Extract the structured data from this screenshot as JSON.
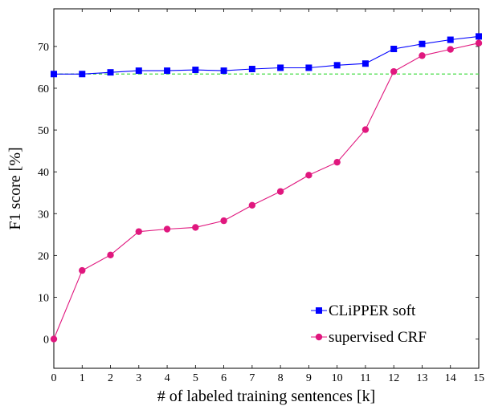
{
  "chart_data": {
    "type": "line",
    "title": "",
    "xlabel": "# of labeled training sentences [k]",
    "ylabel": "F1 score [%]",
    "xlim": [
      0,
      15
    ],
    "ylim": [
      -7,
      79
    ],
    "xticks": [
      0,
      1,
      2,
      3,
      4,
      5,
      6,
      7,
      8,
      9,
      10,
      11,
      12,
      13,
      14,
      15
    ],
    "yticks": [
      0,
      10,
      20,
      30,
      40,
      50,
      60,
      70
    ],
    "x": [
      0,
      1,
      2,
      3,
      4,
      5,
      6,
      7,
      8,
      9,
      10,
      11,
      12,
      13,
      14,
      15
    ],
    "series": [
      {
        "name": "CLiPPER soft",
        "color": "#0000ff",
        "marker": "square",
        "values": [
          63.4,
          63.4,
          63.8,
          64.2,
          64.2,
          64.4,
          64.2,
          64.6,
          64.9,
          64.9,
          65.5,
          65.9,
          69.4,
          70.6,
          71.6,
          72.4
        ]
      },
      {
        "name": "supervised CRF",
        "color": "#e0177e",
        "marker": "circle",
        "values": [
          0.0,
          16.4,
          20.1,
          25.7,
          26.3,
          26.7,
          28.3,
          32.0,
          35.3,
          39.2,
          42.3,
          50.1,
          64.0,
          67.8,
          69.3,
          70.8
        ]
      }
    ],
    "reference_line": {
      "y": 63.4,
      "color": "#44dd44",
      "style": "dashed"
    },
    "legend": {
      "position": "bottom-right"
    },
    "grid": false
  }
}
